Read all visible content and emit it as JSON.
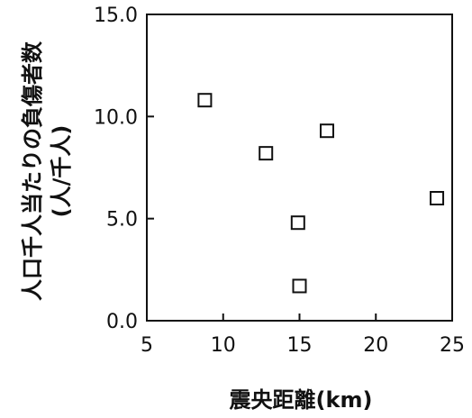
{
  "chart_data": {
    "type": "scatter",
    "xlabel": "震央距離(km)",
    "ylabel": "人口千人当たりの負傷者数",
    "ylabel_unit": "(人/千人)",
    "xlim": [
      5,
      25
    ],
    "ylim": [
      0,
      15
    ],
    "xticks": [
      5,
      10,
      15,
      20,
      25
    ],
    "xtick_labels": [
      "5",
      "10",
      "15",
      "20",
      "25"
    ],
    "yticks": [
      0,
      5,
      10,
      15
    ],
    "ytick_labels": [
      "0.0",
      "5.0",
      "10.0",
      "15.0"
    ],
    "grid": false,
    "marker": "open-square",
    "points": [
      {
        "x": 8.8,
        "y": 10.8
      },
      {
        "x": 12.8,
        "y": 8.2
      },
      {
        "x": 16.8,
        "y": 9.3
      },
      {
        "x": 14.9,
        "y": 4.8
      },
      {
        "x": 15.0,
        "y": 1.7
      },
      {
        "x": 24.0,
        "y": 6.0
      }
    ]
  }
}
